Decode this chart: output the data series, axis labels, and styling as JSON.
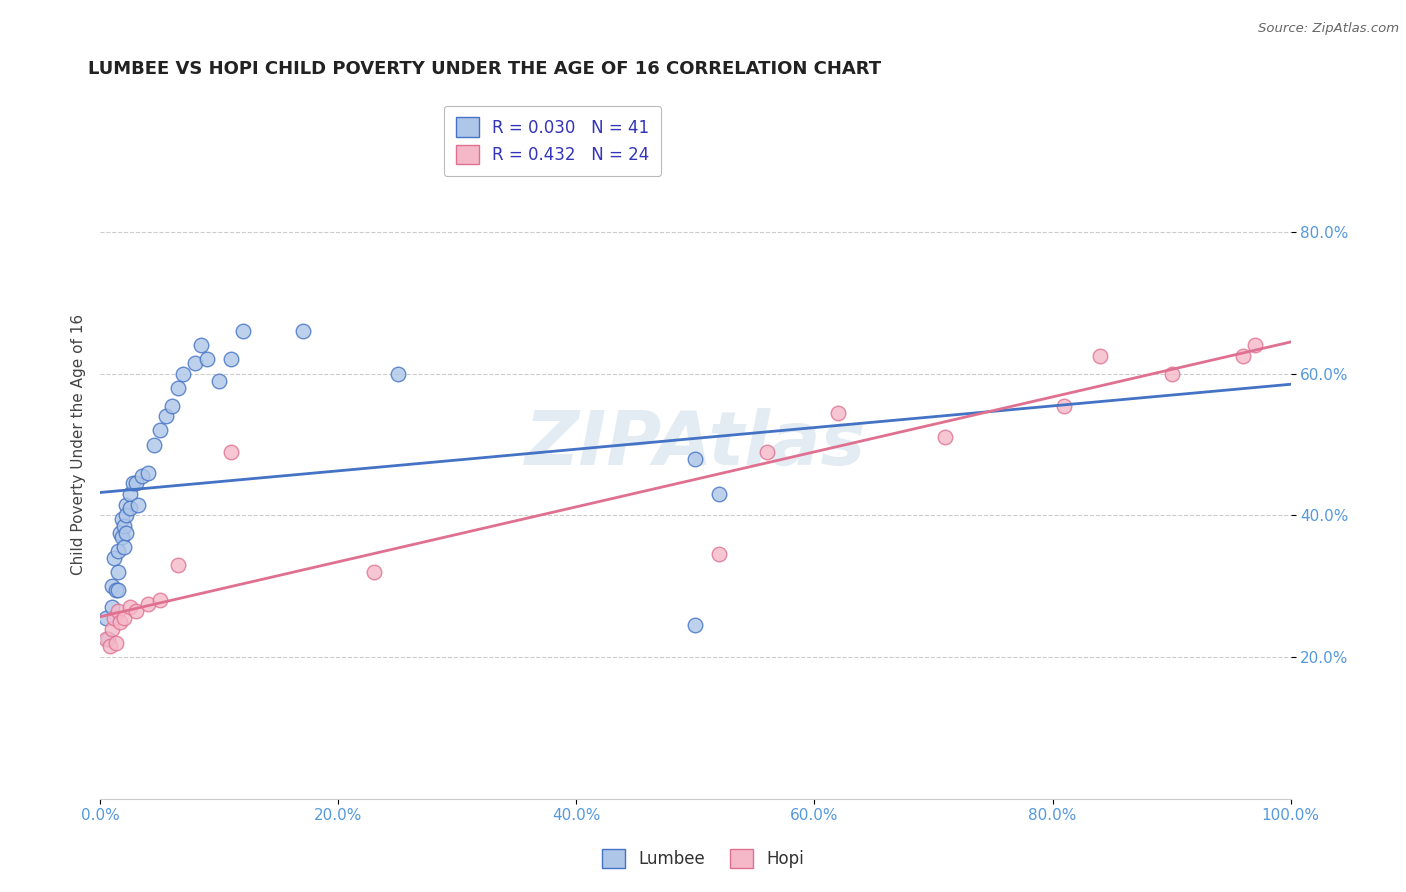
{
  "title": "LUMBEE VS HOPI CHILD POVERTY UNDER THE AGE OF 16 CORRELATION CHART",
  "ylabel": "Child Poverty Under the Age of 16",
  "source_text": "Source: ZipAtlas.com",
  "watermark": "ZIPAtlas",
  "xlim": [
    0.0,
    1.0
  ],
  "ylim": [
    0.0,
    1.0
  ],
  "xtick_labels": [
    "0.0%",
    "20.0%",
    "40.0%",
    "60.0%",
    "80.0%",
    "100.0%"
  ],
  "xtick_vals": [
    0.0,
    0.2,
    0.4,
    0.6,
    0.8,
    1.0
  ],
  "ytick_labels": [
    "20.0%",
    "40.0%",
    "60.0%",
    "80.0%"
  ],
  "ytick_vals": [
    0.2,
    0.4,
    0.6,
    0.8
  ],
  "lumbee_R": "0.030",
  "lumbee_N": "41",
  "hopi_R": "0.432",
  "hopi_N": "24",
  "lumbee_color": "#aec6e8",
  "hopi_color": "#f5b8c8",
  "lumbee_line_color": "#4472c4",
  "hopi_line_color": "#e07090",
  "legend_label_color": "#3333bb",
  "tick_color": "#5599dd",
  "background_color": "#ffffff",
  "grid_color": "#cccccc",
  "lumbee_x": [
    0.005,
    0.007,
    0.01,
    0.01,
    0.012,
    0.013,
    0.015,
    0.015,
    0.015,
    0.017,
    0.018,
    0.018,
    0.02,
    0.02,
    0.022,
    0.022,
    0.022,
    0.025,
    0.025,
    0.028,
    0.03,
    0.032,
    0.035,
    0.04,
    0.045,
    0.05,
    0.055,
    0.06,
    0.065,
    0.07,
    0.08,
    0.085,
    0.09,
    0.1,
    0.11,
    0.12,
    0.17,
    0.25,
    0.5,
    0.52,
    0.5
  ],
  "lumbee_y": [
    0.255,
    0.225,
    0.3,
    0.27,
    0.34,
    0.295,
    0.35,
    0.32,
    0.295,
    0.375,
    0.395,
    0.37,
    0.385,
    0.355,
    0.415,
    0.4,
    0.375,
    0.43,
    0.41,
    0.445,
    0.445,
    0.415,
    0.455,
    0.46,
    0.5,
    0.52,
    0.54,
    0.555,
    0.58,
    0.6,
    0.615,
    0.64,
    0.62,
    0.59,
    0.62,
    0.66,
    0.66,
    0.6,
    0.48,
    0.43,
    0.245
  ],
  "hopi_x": [
    0.005,
    0.008,
    0.01,
    0.012,
    0.013,
    0.015,
    0.017,
    0.02,
    0.025,
    0.03,
    0.04,
    0.05,
    0.065,
    0.11,
    0.23,
    0.52,
    0.56,
    0.62,
    0.71,
    0.81,
    0.84,
    0.9,
    0.96,
    0.97
  ],
  "hopi_y": [
    0.225,
    0.215,
    0.24,
    0.255,
    0.22,
    0.265,
    0.25,
    0.255,
    0.27,
    0.265,
    0.275,
    0.28,
    0.33,
    0.49,
    0.32,
    0.345,
    0.49,
    0.545,
    0.51,
    0.555,
    0.625,
    0.6,
    0.625,
    0.64
  ],
  "marker_size": 110
}
